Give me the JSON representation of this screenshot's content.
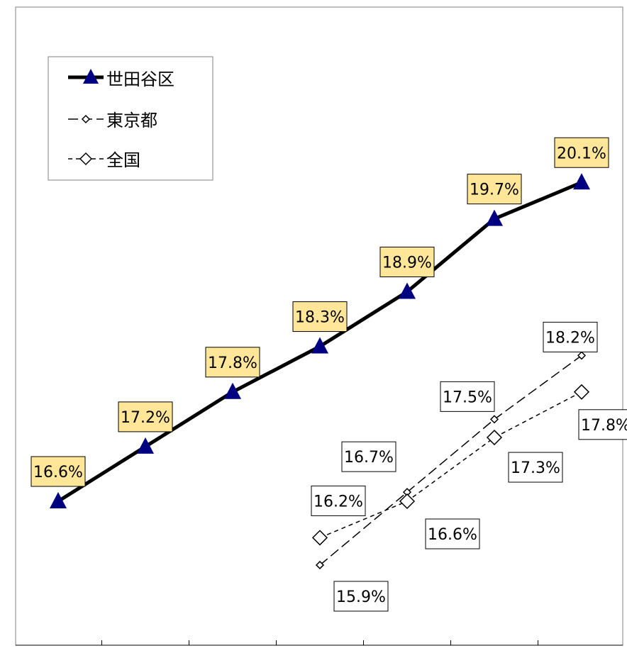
{
  "chart_data": {
    "type": "line",
    "categories": [
      "",
      "",
      "",
      "",
      "",
      "",
      ""
    ],
    "series": [
      {
        "name": "世田谷区",
        "values": [
          16.6,
          17.2,
          17.8,
          18.3,
          18.9,
          19.7,
          20.1
        ],
        "labels": [
          "16.6%",
          "17.2%",
          "17.8%",
          "18.3%",
          "18.9%",
          "19.7%",
          "20.1%"
        ],
        "color": "#000000",
        "marker": "triangle",
        "marker_color": "#000080",
        "label_bg": "#FFE699"
      },
      {
        "name": "東京都",
        "values": [
          null,
          null,
          null,
          15.9,
          16.7,
          17.5,
          18.2
        ],
        "labels": [
          "",
          "",
          "",
          "15.9%",
          "16.7%",
          "17.5%",
          "18.2%"
        ],
        "color": "#000000",
        "marker": "diamond-small",
        "label_bg": "#ffffff"
      },
      {
        "name": "全国",
        "values": [
          null,
          null,
          null,
          16.2,
          16.6,
          17.3,
          17.8
        ],
        "labels": [
          "",
          "",
          "",
          "16.2%",
          "16.6%",
          "17.3%",
          "17.8%"
        ],
        "color": "#000000",
        "marker": "diamond",
        "label_bg": "#ffffff"
      }
    ],
    "legend_position": "top-left",
    "grid": false
  }
}
